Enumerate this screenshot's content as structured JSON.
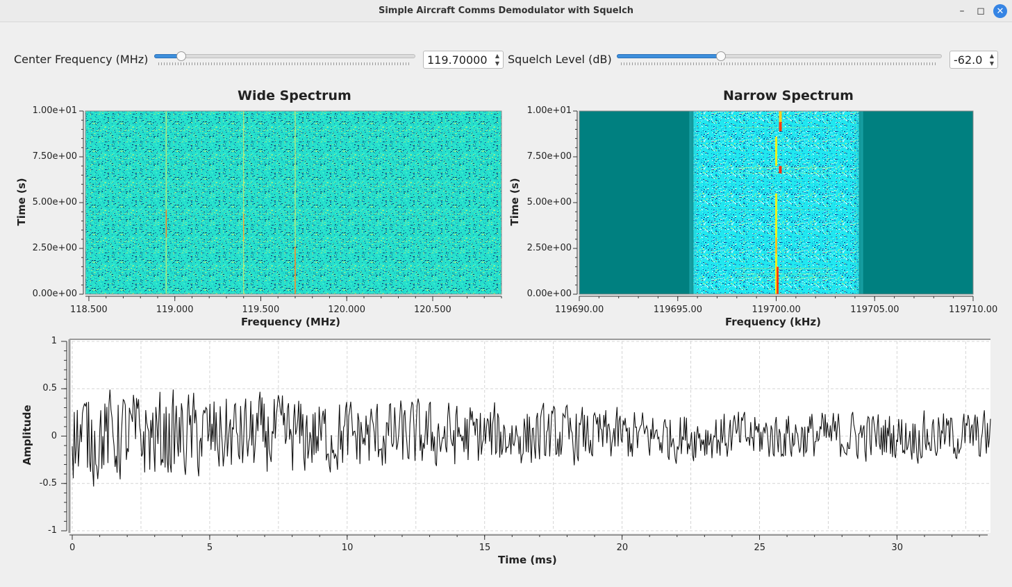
{
  "window": {
    "title": "Simple Aircraft Comms Demodulator with Squelch"
  },
  "controls": {
    "center_freq": {
      "label": "Center Frequency (MHz)",
      "value": "119.70000",
      "slider_fraction": 0.105
    },
    "squelch": {
      "label": "Squelch Level (dB)",
      "value": "-62.0",
      "slider_fraction": 0.32
    }
  },
  "wide_spectrum": {
    "title": "Wide Spectrum",
    "xlabel": "Frequency (MHz)",
    "ylabel": "Time (s)",
    "x_ticks": [
      "118.500",
      "119.000",
      "119.500",
      "120.000",
      "120.500"
    ],
    "y_ticks": [
      "1.00e+01",
      "7.50e+00",
      "5.00e+00",
      "2.50e+00",
      "0.00e+00"
    ]
  },
  "narrow_spectrum": {
    "title": "Narrow Spectrum",
    "xlabel": "Frequency (kHz)",
    "ylabel": "Time (s)",
    "x_ticks": [
      "119690.00",
      "119695.00",
      "119700.00",
      "119705.00",
      "119710.00"
    ],
    "y_ticks": [
      "1.00e+01",
      "7.50e+00",
      "5.00e+00",
      "2.50e+00",
      "0.00e+00"
    ]
  },
  "time_plot": {
    "xlabel": "Time (ms)",
    "ylabel": "Amplitude",
    "x_ticks": [
      "0",
      "5",
      "10",
      "15",
      "20",
      "25",
      "30"
    ],
    "y_ticks": [
      "1",
      "0.5",
      "0",
      "-0.5",
      "-1"
    ]
  },
  "chart_data": [
    {
      "type": "heatmap",
      "title": "Wide Spectrum",
      "xlabel": "Frequency (MHz)",
      "ylabel": "Time (s)",
      "xlim": [
        118.48,
        120.9
      ],
      "ylim": [
        0,
        10
      ],
      "carriers_mhz": [
        118.95,
        119.4,
        119.7
      ]
    },
    {
      "type": "heatmap",
      "title": "Narrow Spectrum",
      "xlabel": "Frequency (kHz)",
      "ylabel": "Time (s)",
      "xlim": [
        119690,
        119710
      ],
      "ylim": [
        0,
        10
      ],
      "passband_khz": [
        119695.8,
        119704.2
      ],
      "carrier_khz": 119700.0
    },
    {
      "type": "line",
      "title": "",
      "xlabel": "Time (ms)",
      "ylabel": "Amplitude",
      "xlim": [
        0,
        33.4
      ],
      "ylim": [
        -1,
        1
      ],
      "grid": true
    }
  ]
}
